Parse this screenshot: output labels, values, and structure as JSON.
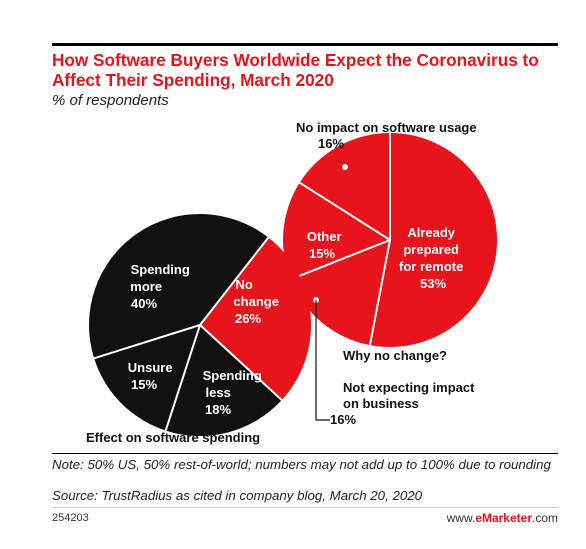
{
  "header": {
    "title": "How Software Buyers Worldwide Expect the Coronavirus to Affect Their Spending, March 2020",
    "subtitle": "% of respondents"
  },
  "chart_data": [
    {
      "type": "pie",
      "title": "Effect on software spending",
      "slices": [
        {
          "label": "No change",
          "value": 26,
          "color": "#e8141b"
        },
        {
          "label": "Spending less",
          "value": 18,
          "color": "#111111"
        },
        {
          "label": "Unsure",
          "value": 15,
          "color": "#111111"
        },
        {
          "label": "Spending more",
          "value": 40,
          "color": "#111111"
        }
      ]
    },
    {
      "type": "pie",
      "title": "Why no change?",
      "slices": [
        {
          "label": "Already prepared for remote",
          "value": 53,
          "color": "#e8141b"
        },
        {
          "label": "Not expecting impact on business",
          "value": 16,
          "color": "#e8141b"
        },
        {
          "label": "Other",
          "value": 15,
          "color": "#e8141b"
        },
        {
          "label": "No impact on software usage",
          "value": 16,
          "color": "#e8141b"
        }
      ]
    }
  ],
  "footer": {
    "note": "Note: 50% US, 50% rest-of-world; numbers may not add up to 100% due to rounding",
    "source": "Source: TrustRadius as cited in company blog, March 20, 2020",
    "id": "254203",
    "brand_prefix": "www.",
    "brand_name": "eMarketer",
    "brand_suffix": ".com"
  }
}
